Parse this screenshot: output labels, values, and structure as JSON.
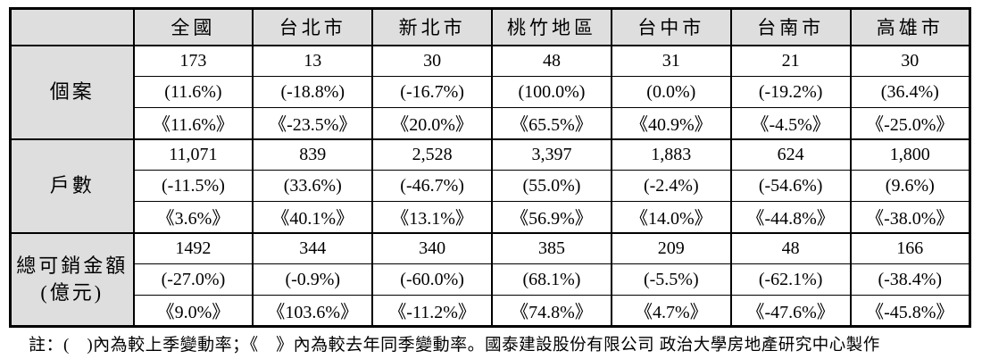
{
  "table": {
    "corner_label": "",
    "column_headers": [
      "全國",
      "台北市",
      "新北市",
      "桃竹地區",
      "台中市",
      "台南市",
      "高雄市"
    ],
    "row_groups": [
      {
        "label_lines": [
          "個案"
        ],
        "rows": [
          [
            "173",
            "13",
            "30",
            "48",
            "31",
            "21",
            "30"
          ],
          [
            "(11.6%)",
            "(-18.8%)",
            "(-16.7%)",
            "(100.0%)",
            "(0.0%)",
            "(-19.2%)",
            "(36.4%)"
          ],
          [
            "《11.6%》",
            "《-23.5%》",
            "《20.0%》",
            "《65.5%》",
            "《40.9%》",
            "《-4.5%》",
            "《-25.0%》"
          ]
        ]
      },
      {
        "label_lines": [
          "戶數"
        ],
        "rows": [
          [
            "11,071",
            "839",
            "2,528",
            "3,397",
            "1,883",
            "624",
            "1,800"
          ],
          [
            "(-11.5%)",
            "(33.6%)",
            "(-46.7%)",
            "(55.0%)",
            "(-2.4%)",
            "(-54.6%)",
            "(9.6%)"
          ],
          [
            "《3.6%》",
            "《40.1%》",
            "《13.1%》",
            "《56.9%》",
            "《14.0%》",
            "《-44.8%》",
            "《-38.0%》"
          ]
        ]
      },
      {
        "label_lines": [
          "總可銷金額",
          "(億元)"
        ],
        "rows": [
          [
            "1492",
            "344",
            "340",
            "385",
            "209",
            "48",
            "166"
          ],
          [
            "(-27.0%)",
            "(-0.9%)",
            "(-60.0%)",
            "(68.1%)",
            "(-5.5%)",
            "(-62.1%)",
            "(-38.4%)"
          ],
          [
            "《9.0%》",
            "《103.6%》",
            "《-11.2%》",
            "《74.8%》",
            "《4.7%》",
            "《-47.6%》",
            "《-45.8%》"
          ]
        ]
      }
    ]
  },
  "footnote": {
    "note": "註：(　)內為較上季變動率；《　》內為較去年同季變動率。",
    "credit": "國泰建設股份有限公司  政治大學房地產研究中心製作"
  },
  "colors": {
    "header_bg": "#dedede",
    "border": "#000000",
    "text": "#000000"
  }
}
